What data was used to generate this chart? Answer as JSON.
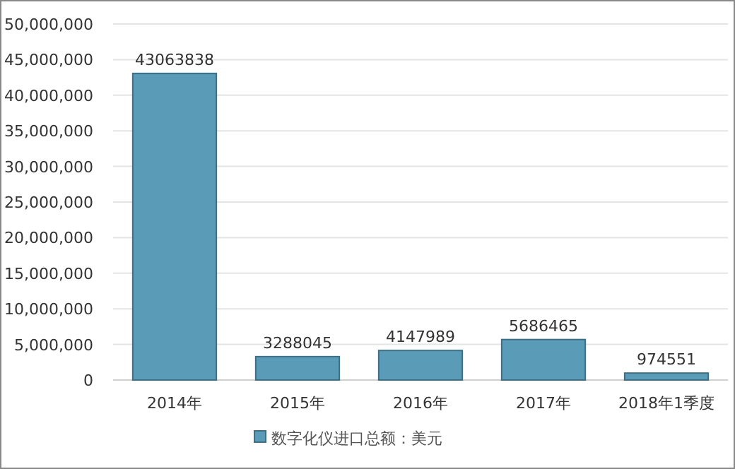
{
  "chart_data": {
    "type": "bar",
    "categories": [
      "2014年",
      "2015年",
      "2016年",
      "2017年",
      "2018年1季度"
    ],
    "series": [
      {
        "name": "数字化仪进口总额：美元",
        "color": "#5a9bb8",
        "values": [
          43063838,
          3288045,
          4147989,
          5686465,
          974551
        ]
      }
    ],
    "ylim": [
      0,
      50000000
    ],
    "yticks": [
      0,
      {
        "value": 5000000,
        "label": "5,000,000"
      },
      {
        "value": 10000000,
        "label": "10,000,000"
      },
      {
        "value": 15000000,
        "label": "15,000,000"
      },
      {
        "value": 20000000,
        "label": "20,000,000"
      },
      {
        "value": 25000000,
        "label": "25,000,000"
      },
      {
        "value": 30000000,
        "label": "30,000,000"
      },
      {
        "value": 35000000,
        "label": "35,000,000"
      },
      {
        "value": 40000000,
        "label": "40,000,000"
      },
      {
        "value": 45000000,
        "label": "45,000,000"
      },
      {
        "value": 50000000,
        "label": "50,000,000"
      }
    ],
    "grid": "y",
    "legend": "bottom",
    "data_labels": true
  }
}
